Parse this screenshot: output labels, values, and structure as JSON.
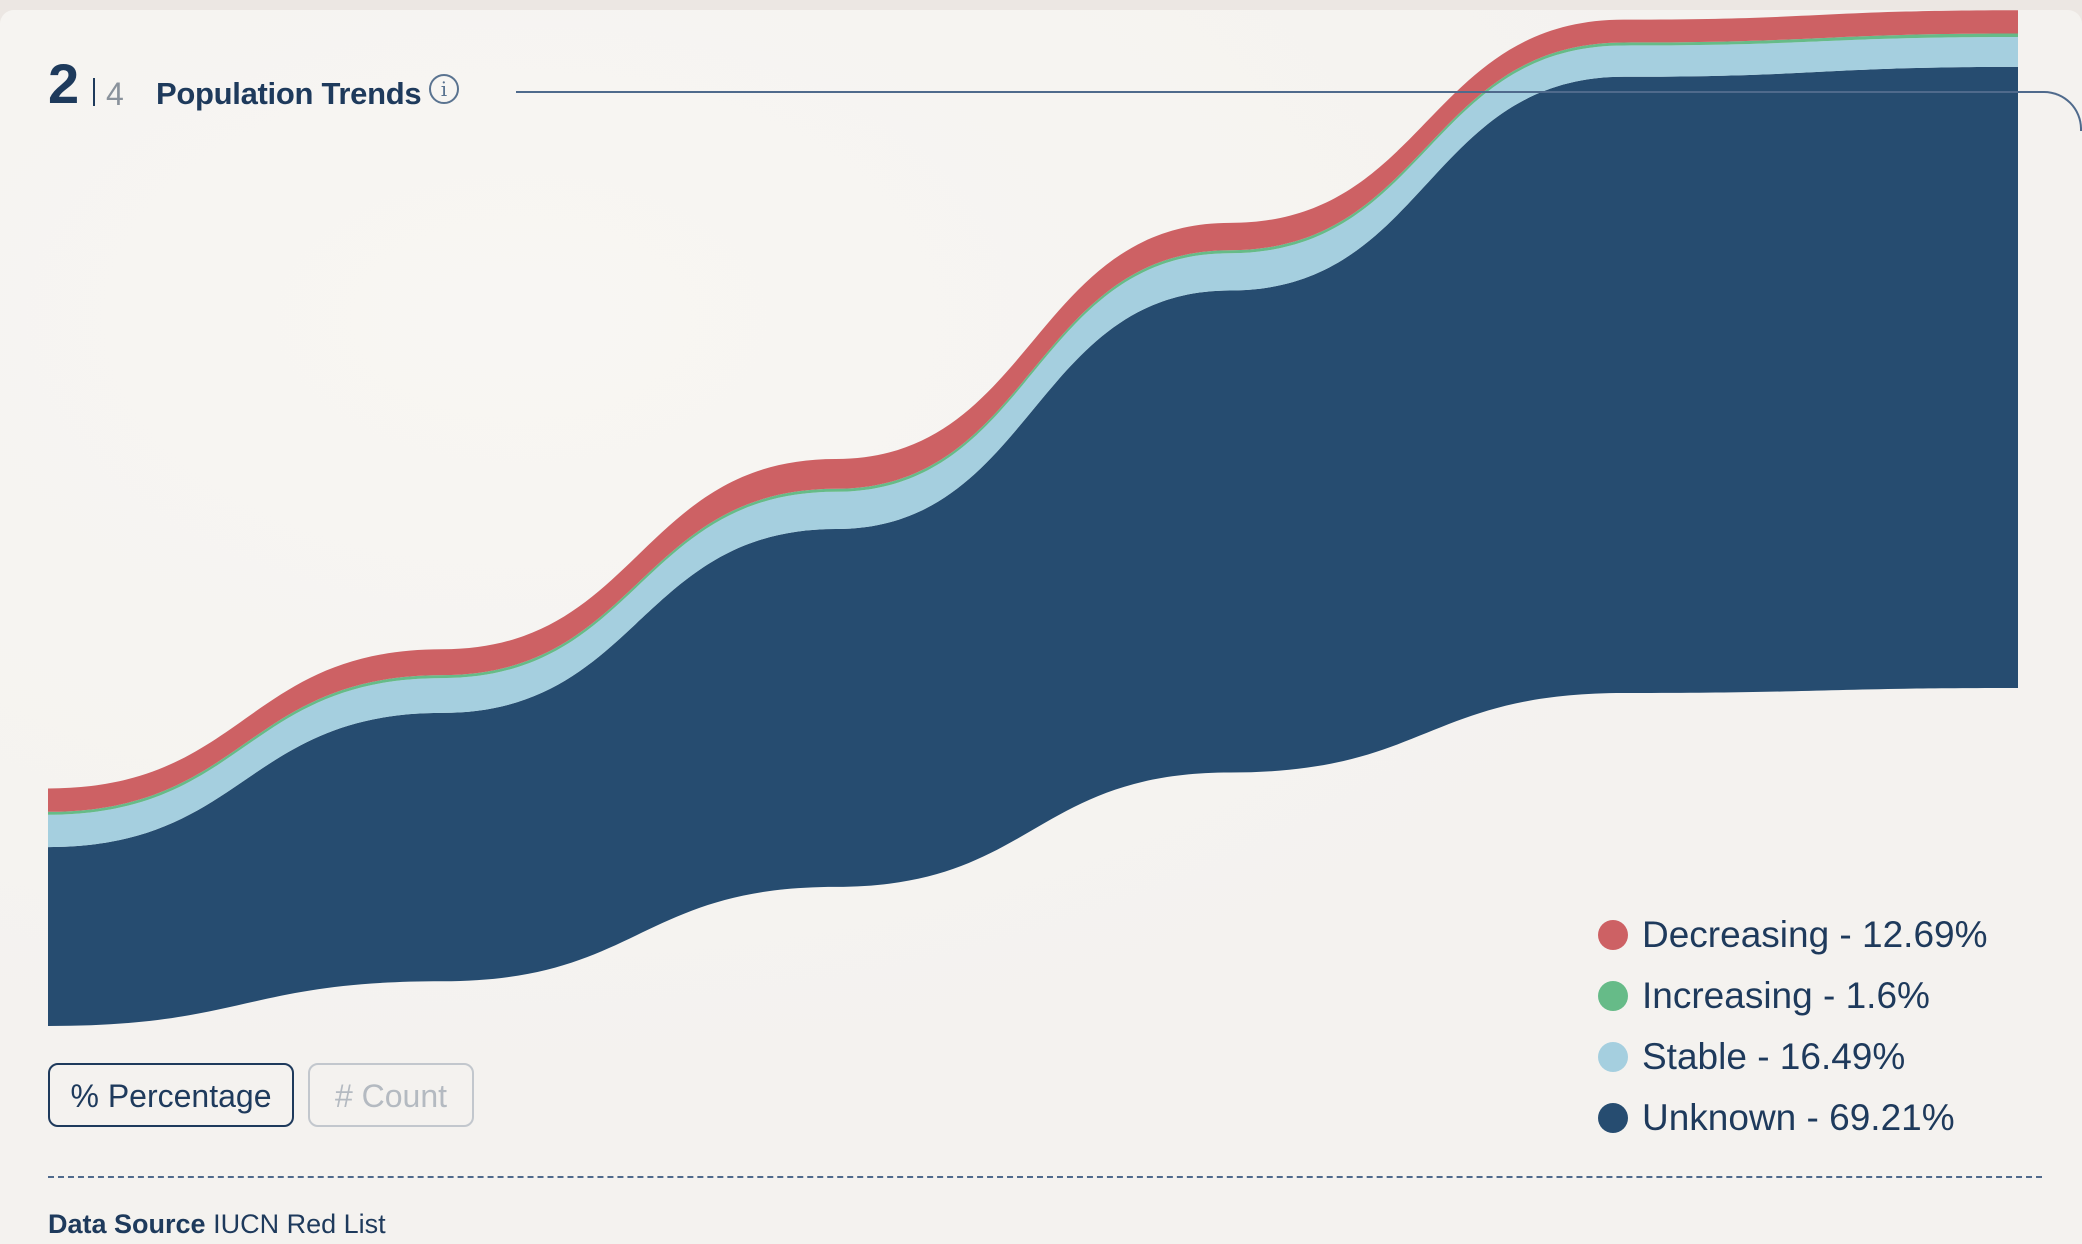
{
  "header": {
    "step_current": "2",
    "step_total": "4",
    "title": "Population Trends",
    "info_icon": "info-circle-icon"
  },
  "chart_data": {
    "type": "area",
    "stacked": true,
    "curve": "smooth",
    "x": [
      0,
      1,
      2,
      3,
      4,
      5
    ],
    "series": [
      {
        "name": "Unknown",
        "color": "#264c70",
        "values": [
          0.36,
          0.54,
          0.72,
          0.97,
          1.24,
          1.25
        ]
      },
      {
        "name": "Stable",
        "color": "#a5cfdf",
        "values": [
          0.065,
          0.07,
          0.075,
          0.075,
          0.063,
          0.06
        ]
      },
      {
        "name": "Increasing",
        "color": "#66bb88",
        "values": [
          0.006,
          0.006,
          0.006,
          0.006,
          0.006,
          0.007
        ]
      },
      {
        "name": "Decreasing",
        "color": "#cd6164",
        "values": [
          0.047,
          0.052,
          0.06,
          0.055,
          0.046,
          0.047
        ]
      }
    ],
    "ylim": [
      0,
      1.65
    ],
    "grid": false
  },
  "legend": {
    "items": [
      {
        "label": "Decreasing -  12.69%",
        "color": "#cd6164"
      },
      {
        "label": "Increasing -  1.6%",
        "color": "#66bb88"
      },
      {
        "label": "Stable -  16.49%",
        "color": "#a5cfdf"
      },
      {
        "label": "Unknown -  69.21%",
        "color": "#264c70"
      }
    ]
  },
  "toggle": {
    "percentage_label": "% Percentage",
    "count_label": "# Count",
    "active": "percentage"
  },
  "footer": {
    "source_key": "Data Source",
    "source_value": "IUCN Red List"
  }
}
